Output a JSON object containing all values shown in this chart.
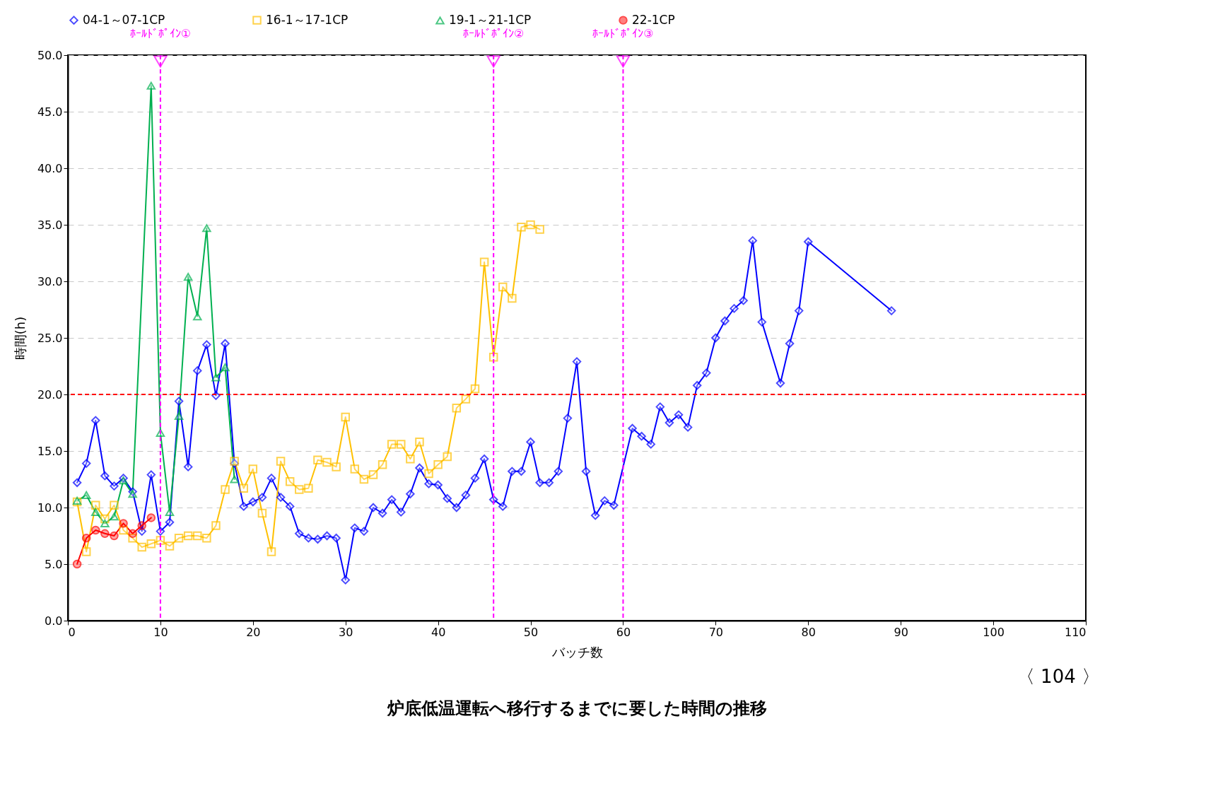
{
  "chart_data": {
    "type": "line",
    "title": "炉底低温運転へ移行するまでに要した時間の推移",
    "xlabel": "バッチ数",
    "ylabel": "時間(h)",
    "annotations": [
      "〈 104 〉"
    ],
    "xlim": [
      0,
      110
    ],
    "xticks": [
      0,
      10,
      20,
      30,
      40,
      50,
      60,
      70,
      80,
      90,
      100,
      110
    ],
    "ylim": [
      0,
      50
    ],
    "yticks": [
      {
        "value": 0,
        "label": "0.0"
      },
      {
        "value": 5,
        "label": "5.0"
      },
      {
        "value": 10,
        "label": "10.0"
      },
      {
        "value": 15,
        "label": "15.0"
      },
      {
        "value": 20,
        "label": "20.0"
      },
      {
        "value": 25,
        "label": "25.0"
      },
      {
        "value": 30,
        "label": "30.0"
      },
      {
        "value": 35,
        "label": "35.0"
      },
      {
        "value": 40,
        "label": "40.0"
      },
      {
        "value": 45,
        "label": "45.0"
      },
      {
        "value": 50,
        "label": "50.0"
      }
    ],
    "grid": "y",
    "legend": "top",
    "line_style": "solid",
    "series": [
      {
        "name": "04-1～07-1CP",
        "color": "#0000ff",
        "marker": "diamond",
        "x": [
          1,
          2,
          3,
          4,
          5,
          6,
          7,
          8,
          9,
          10,
          11,
          12,
          13,
          14,
          15,
          16,
          17,
          18,
          19,
          20,
          21,
          22,
          23,
          24,
          25,
          26,
          27,
          28,
          29,
          30,
          31,
          32,
          33,
          34,
          35,
          36,
          37,
          38,
          39,
          40,
          41,
          42,
          43,
          44,
          45,
          46,
          47,
          48,
          49,
          50,
          51,
          52,
          53,
          54,
          55,
          56,
          57,
          58,
          59,
          61,
          62,
          63,
          64,
          65,
          66,
          67,
          68,
          69,
          70,
          71,
          72,
          73,
          74,
          75,
          77,
          78,
          79,
          80,
          89
        ],
        "values": [
          12.2,
          13.9,
          17.7,
          12.8,
          11.9,
          12.6,
          11.4,
          7.9,
          12.9,
          7.9,
          8.7,
          19.4,
          13.6,
          22.1,
          24.4,
          19.9,
          24.5,
          13.9,
          10.1,
          10.5,
          10.9,
          12.6,
          10.9,
          10.1,
          7.7,
          7.3,
          7.2,
          7.5,
          7.3,
          3.6,
          8.2,
          7.9,
          10.0,
          9.5,
          10.7,
          9.6,
          11.2,
          13.5,
          12.1,
          12.0,
          10.8,
          10.0,
          11.1,
          12.6,
          14.3,
          10.7,
          10.1,
          13.2,
          13.2,
          15.8,
          12.2,
          12.2,
          13.2,
          17.9,
          22.9,
          13.2,
          9.3,
          10.6,
          10.2,
          17.0,
          16.3,
          15.6,
          18.9,
          17.5,
          18.2,
          17.1,
          20.8,
          21.9,
          25.0,
          26.5,
          27.6,
          28.3,
          33.6,
          26.4,
          21.0,
          24.5,
          27.4,
          33.5,
          27.4
        ]
      },
      {
        "name": "16-1～17-1CP",
        "color": "#ffc000",
        "marker": "square",
        "x": [
          1,
          2,
          3,
          4,
          5,
          6,
          7,
          8,
          9,
          10,
          11,
          12,
          13,
          14,
          15,
          16,
          17,
          18,
          19,
          20,
          21,
          22,
          23,
          24,
          25,
          26,
          27,
          28,
          29,
          30,
          31,
          32,
          33,
          34,
          35,
          36,
          37,
          38,
          39,
          40,
          41,
          42,
          43,
          44,
          45,
          46,
          47,
          48,
          49,
          50,
          51
        ],
        "values": [
          10.5,
          6.1,
          10.2,
          9.0,
          10.2,
          8.0,
          7.3,
          6.5,
          6.8,
          7.1,
          6.6,
          7.3,
          7.5,
          7.5,
          7.3,
          8.4,
          11.6,
          14.1,
          11.7,
          13.4,
          9.5,
          6.1,
          14.1,
          12.3,
          11.6,
          11.7,
          14.2,
          14.0,
          13.6,
          18.0,
          13.4,
          12.5,
          12.9,
          13.8,
          15.6,
          15.6,
          14.3,
          15.8,
          13.0,
          13.8,
          14.5,
          18.8,
          19.6,
          20.5,
          31.7,
          23.3,
          29.5,
          28.5,
          34.8,
          35.0,
          34.6
        ]
      },
      {
        "name": "19-1～21-1CP",
        "color": "#00b050",
        "marker": "triangle",
        "x": [
          1,
          2,
          3,
          4,
          5,
          6,
          7,
          9,
          10,
          11,
          12,
          13,
          14,
          15,
          16,
          17,
          18
        ],
        "values": [
          10.6,
          11.1,
          9.6,
          8.6,
          9.2,
          12.4,
          11.2,
          47.3,
          16.6,
          9.6,
          18.1,
          30.4,
          26.9,
          34.7,
          21.5,
          22.4,
          12.5
        ]
      },
      {
        "name": "22-1CP",
        "color": "#ff0000",
        "marker": "circle",
        "x": [
          1,
          2,
          3,
          4,
          5,
          6,
          7,
          8,
          9
        ],
        "values": [
          5.0,
          7.3,
          8.0,
          7.7,
          7.5,
          8.6,
          7.7,
          8.4,
          9.1
        ]
      }
    ],
    "ref_lines": [
      {
        "axis": "y",
        "value": 20,
        "color": "#ff0000",
        "line_style": "dashed"
      },
      {
        "axis": "x",
        "value": 10,
        "label": "ﾎｰﾙﾄﾞﾎﾟｲﾝ①",
        "color": "#ff00ff",
        "line_style": "dashed"
      },
      {
        "axis": "x",
        "value": 46,
        "label": "ﾎｰﾙﾄﾞﾎﾟｲﾝ②",
        "color": "#ff00ff",
        "line_style": "dashed"
      },
      {
        "axis": "x",
        "value": 60,
        "label": "ﾎｰﾙﾄﾞﾎﾟｲﾝ③",
        "color": "#ff00ff",
        "line_style": "dashed"
      }
    ]
  }
}
